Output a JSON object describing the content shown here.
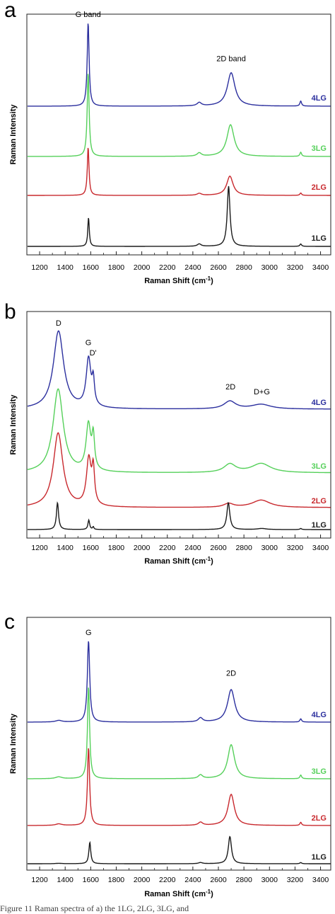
{
  "chart_data": [
    {
      "panel_label": "a",
      "type": "line",
      "xlabel": "Raman Shift (cm",
      "xlabel_sup": "-1",
      "xlabel_end": ")",
      "ylabel": "Raman Intensity",
      "xlim": [
        1100,
        3480
      ],
      "xticks": [
        1200,
        1400,
        1600,
        1800,
        2000,
        2200,
        2400,
        2600,
        2800,
        3000,
        3200,
        3400
      ],
      "annotations": [
        {
          "text": "G band",
          "x": 1580,
          "level": 1.0
        },
        {
          "text": "2D band",
          "x": 2700,
          "level": 0.47
        }
      ],
      "series": [
        {
          "name": "4LG",
          "color": "#2b2f9e",
          "peaks": [
            [
              1580,
              1.0,
              9
            ],
            [
              2450,
              0.04,
              20
            ],
            [
              2700,
              0.4,
              36
            ],
            [
              3245,
              0.06,
              8
            ]
          ]
        },
        {
          "name": "3LG",
          "color": "#55d05a",
          "peaks": [
            [
              1580,
              1.0,
              9
            ],
            [
              2450,
              0.04,
              20
            ],
            [
              2695,
              0.38,
              34
            ],
            [
              3245,
              0.05,
              8
            ]
          ]
        },
        {
          "name": "2LG",
          "color": "#c8282d",
          "peaks": [
            [
              1580,
              1.0,
              8
            ],
            [
              2450,
              0.04,
              20
            ],
            [
              2690,
              0.4,
              30
            ],
            [
              3245,
              0.05,
              8
            ]
          ]
        },
        {
          "name": "1LG",
          "color": "#1a1a1a",
          "peaks": [
            [
              1583,
              0.48,
              7
            ],
            [
              2450,
              0.04,
              18
            ],
            [
              2680,
              1.0,
              13
            ],
            [
              3245,
              0.04,
              8
            ]
          ]
        }
      ]
    },
    {
      "panel_label": "b",
      "type": "line",
      "xlabel": "Raman Shift (cm",
      "xlabel_sup": "-1",
      "xlabel_end": ")",
      "ylabel": "Raman Intensity",
      "xlim": [
        1100,
        3480
      ],
      "xticks": [
        1200,
        1400,
        1600,
        1800,
        2000,
        2200,
        2400,
        2600,
        2800,
        3000,
        3200,
        3400
      ],
      "annotations": [
        {
          "text": "D",
          "x": 1348,
          "level": 1.0
        },
        {
          "text": "G",
          "x": 1582,
          "level": 0.75
        },
        {
          "text": "D'",
          "x": 1618,
          "level": 0.62
        },
        {
          "text": "2D",
          "x": 2695,
          "level": 0.18
        },
        {
          "text": "D+G",
          "x": 2940,
          "level": 0.12
        }
      ],
      "series": [
        {
          "name": "4LG",
          "color": "#2b2f9e",
          "peaks": [
            [
              1348,
              1.0,
              48
            ],
            [
              1583,
              0.62,
              22
            ],
            [
              1620,
              0.3,
              11
            ],
            [
              2690,
              0.1,
              55
            ],
            [
              2935,
              0.06,
              90
            ]
          ]
        },
        {
          "name": "3LG",
          "color": "#55d05a",
          "peaks": [
            [
              1345,
              1.0,
              48
            ],
            [
              1582,
              0.55,
              22
            ],
            [
              1620,
              0.38,
              12
            ],
            [
              2690,
              0.1,
              55
            ],
            [
              2935,
              0.11,
              90
            ]
          ]
        },
        {
          "name": "2LG",
          "color": "#c8282d",
          "peaks": [
            [
              1345,
              1.0,
              45
            ],
            [
              1585,
              0.63,
              22
            ],
            [
              1620,
              0.45,
              12
            ],
            [
              2680,
              0.05,
              45
            ],
            [
              2935,
              0.1,
              85
            ]
          ]
        },
        {
          "name": "1LG",
          "color": "#1a1a1a",
          "peaks": [
            [
              1340,
              1.0,
              10
            ],
            [
              1585,
              0.35,
              8
            ],
            [
              1620,
              0.1,
              6
            ],
            [
              2678,
              1.0,
              14
            ],
            [
              2940,
              0.04,
              40
            ],
            [
              3245,
              0.04,
              8
            ]
          ]
        }
      ]
    },
    {
      "panel_label": "c",
      "type": "line",
      "xlabel": "Raman Shift (cm",
      "xlabel_sup": "-1",
      "xlabel_end": ")",
      "ylabel": "Raman Intensity",
      "xlim": [
        1100,
        3480
      ],
      "xticks": [
        1200,
        1400,
        1600,
        1800,
        2000,
        2200,
        2400,
        2600,
        2800,
        3000,
        3200,
        3400
      ],
      "annotations": [
        {
          "text": "G",
          "x": 1583,
          "level": 1.0
        },
        {
          "text": "2D",
          "x": 2700,
          "level": 0.5
        }
      ],
      "series": [
        {
          "name": "4LG",
          "color": "#2b2f9e",
          "peaks": [
            [
              1350,
              0.02,
              30
            ],
            [
              1583,
              1.0,
              11
            ],
            [
              2460,
              0.05,
              20
            ],
            [
              2700,
              0.4,
              34
            ],
            [
              3245,
              0.04,
              8
            ]
          ]
        },
        {
          "name": "3LG",
          "color": "#55d05a",
          "peaks": [
            [
              1350,
              0.02,
              30
            ],
            [
              1583,
              1.0,
              10
            ],
            [
              2460,
              0.04,
              20
            ],
            [
              2700,
              0.37,
              32
            ],
            [
              3245,
              0.04,
              8
            ]
          ]
        },
        {
          "name": "2LG",
          "color": "#c8282d",
          "peaks": [
            [
              1350,
              0.02,
              30
            ],
            [
              1583,
              1.0,
              10
            ],
            [
              2460,
              0.04,
              20
            ],
            [
              2700,
              0.4,
              30
            ],
            [
              3245,
              0.04,
              8
            ]
          ]
        },
        {
          "name": "1LG",
          "color": "#1a1a1a",
          "peaks": [
            [
              1350,
              0.01,
              30
            ],
            [
              1593,
              0.55,
              9
            ],
            [
              2460,
              0.03,
              18
            ],
            [
              2690,
              0.7,
              15
            ],
            [
              3245,
              0.03,
              8
            ]
          ]
        }
      ]
    }
  ],
  "caption_fragment": "Figure 11 Raman spectra of a) the 1LG, 2LG, 3LG, and"
}
